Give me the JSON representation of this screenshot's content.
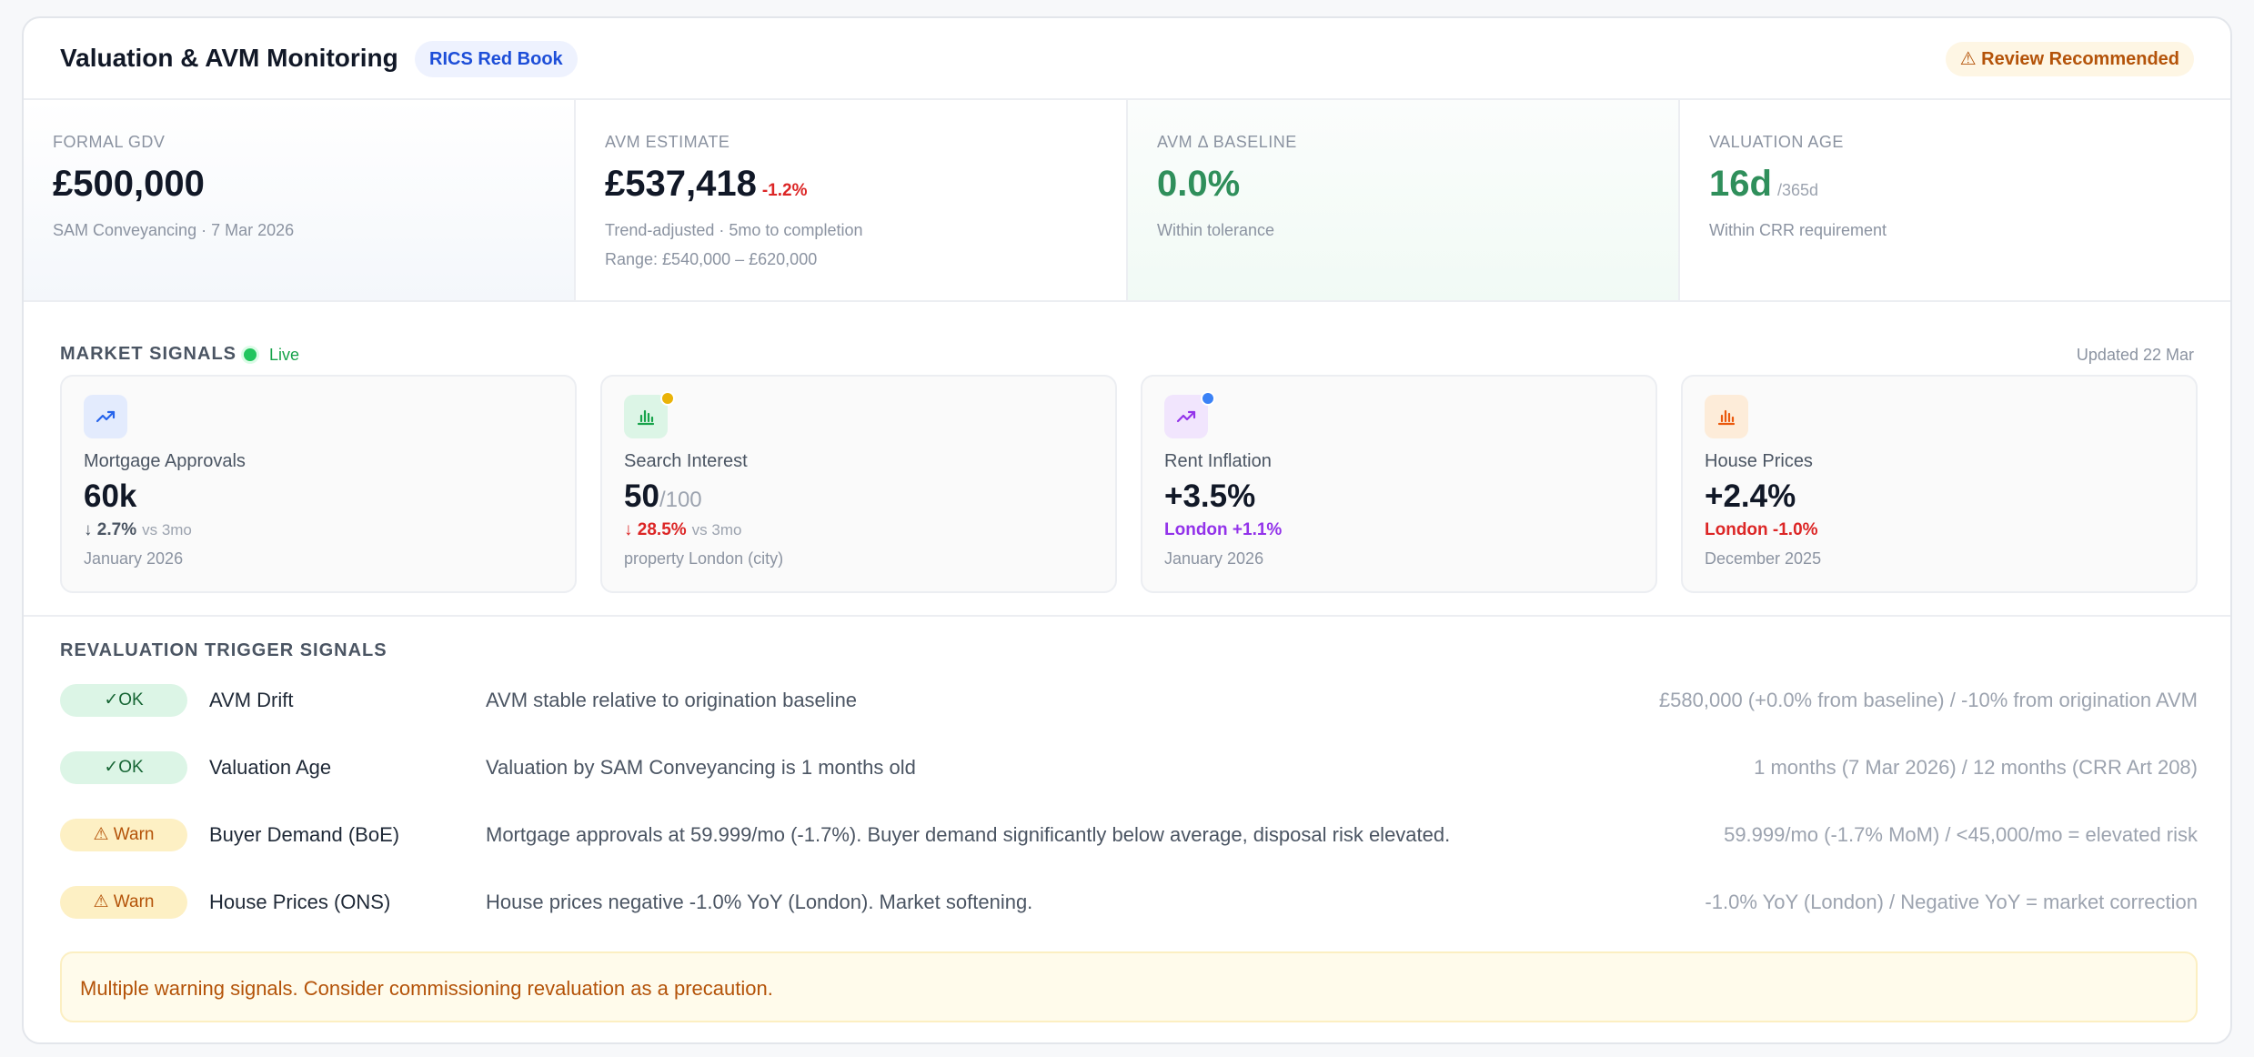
{
  "header": {
    "title": "Valuation & AVM Monitoring",
    "standard_badge": "RICS Red Book",
    "status_badge": "⚠ Review Recommended"
  },
  "metrics": [
    {
      "label": "FORMAL GDV",
      "value": "£500,000",
      "sub": "SAM Conveyancing · 7 Mar 2026"
    },
    {
      "label": "AVM ESTIMATE",
      "value": "£537,418",
      "delta": "-1.2%",
      "sub": "Trend-adjusted · 5mo to completion",
      "sub2": "Range: £540,000 – £620,000"
    },
    {
      "label": "AVM Δ BASELINE",
      "value": "0.0%",
      "sub": "Within tolerance"
    },
    {
      "label": "VALUATION AGE",
      "value": "16d",
      "unit": "/365d",
      "sub": "Within CRR requirement"
    }
  ],
  "market": {
    "title": "MARKET SIGNALS",
    "live": "Live",
    "updated": "Updated 22 Mar",
    "tiles": [
      {
        "name": "Mortgage Approvals",
        "value": "60k",
        "change": "↓ 2.7%",
        "compare": "vs 3mo",
        "date": "January 2026",
        "icon": "trend-up-icon"
      },
      {
        "name": "Search Interest",
        "value": "50",
        "denom": "/100",
        "change": "↓ 28.5%",
        "compare": "vs 3mo",
        "date": "property London (city)",
        "icon": "bar-chart-icon"
      },
      {
        "name": "Rent Inflation",
        "value": "+3.5%",
        "change": "London +1.1%",
        "date": "January 2026",
        "icon": "trend-up-icon"
      },
      {
        "name": "House Prices",
        "value": "+2.4%",
        "change": "London -1.0%",
        "date": "December 2025",
        "icon": "bar-chart-icon"
      }
    ]
  },
  "triggers": {
    "title": "REVALUATION TRIGGER SIGNALS",
    "rows": [
      {
        "status": "✓OK",
        "name": "AVM Drift",
        "desc": "AVM stable relative to origination baseline",
        "value": "£580,000 (+0.0% from baseline) / -10% from origination AVM"
      },
      {
        "status": "✓OK",
        "name": "Valuation Age",
        "desc": "Valuation by SAM Conveyancing is 1 months old",
        "value": "1 months (7 Mar 2026) / 12 months (CRR Art 208)"
      },
      {
        "status": "⚠ Warn",
        "name": "Buyer Demand (BoE)",
        "desc": "Mortgage approvals at 59.999/mo (-1.7%). Buyer demand significantly below average, disposal risk elevated.",
        "value": "59.999/mo (-1.7% MoM) / <45,000/mo = elevated risk"
      },
      {
        "status": "⚠ Warn",
        "name": "House Prices (ONS)",
        "desc": "House prices negative -1.0% YoY (London). Market softening.",
        "value": "-1.0% YoY (London) / Negative YoY = market correction"
      }
    ],
    "alert": "Multiple warning signals. Consider commissioning revaluation as a precaution."
  },
  "colors": {
    "ok": "#166534",
    "warn": "#b45309",
    "negative": "#dc2626",
    "positive": "#2f8f5b",
    "accent_blue": "#1d4ed8",
    "rent_purple": "#9333ea"
  }
}
